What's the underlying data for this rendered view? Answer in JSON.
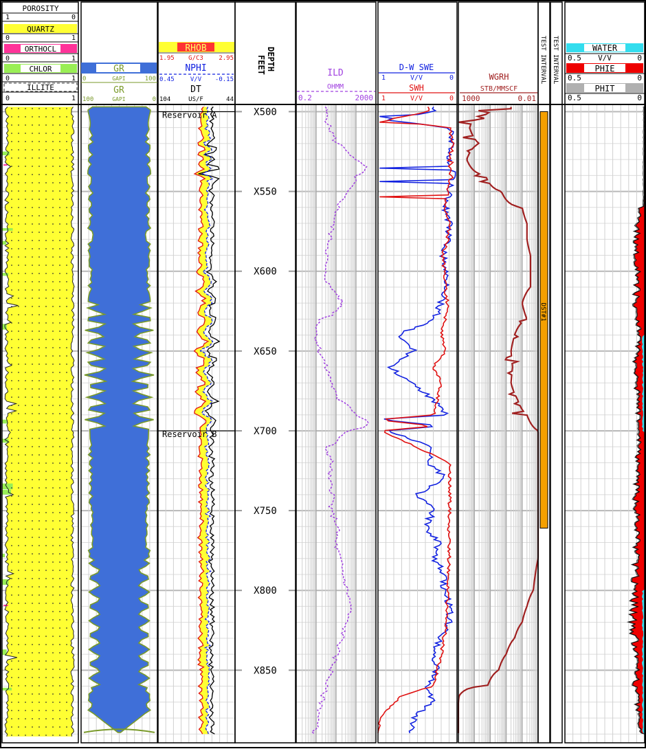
{
  "tracks": {
    "lithology": {
      "porosity_label": "POROSITY",
      "porosity_left": "1",
      "porosity_right": "0",
      "rows": [
        {
          "label": "QUARTZ",
          "left": "0",
          "right": "1",
          "color": "#ffff33"
        },
        {
          "label": "ORTHOCL",
          "left": "0",
          "right": "1",
          "color": "#ff3399"
        },
        {
          "label": "CHLOR",
          "left": "0",
          "right": "1",
          "color": "#99ee55"
        },
        {
          "label": "ILLITE",
          "left": "0",
          "right": "1",
          "color": "#ffffff"
        }
      ]
    },
    "gr": {
      "upper_label": "GR",
      "upper_left": "0",
      "upper_unit": "GAPI",
      "upper_right": "100",
      "lower_label": "GR",
      "lower_left": "100",
      "lower_unit": "GAPI",
      "lower_right": "0",
      "color": "#3f6fd8",
      "text_color": "#7a9a2a"
    },
    "porosity": {
      "rhob_label": "RHOB",
      "rhob_left": "1.95",
      "rhob_unit": "G/C3",
      "rhob_right": "2.95",
      "nphi_label": "NPHI",
      "nphi_left": "0.45",
      "nphi_unit": "V/V",
      "nphi_right": "-0.15",
      "dt_label": "DT",
      "dt_left": "104",
      "dt_unit": "US/F",
      "dt_right": "44",
      "zones": [
        {
          "label": "Reservoir A",
          "depth": 500
        },
        {
          "label": "Reservoir B",
          "depth": 700
        }
      ]
    },
    "depth": {
      "title": "DEPTH",
      "unit": "FEET",
      "ticks": [
        "X500",
        "X550",
        "X600",
        "X650",
        "X700",
        "X750",
        "X800",
        "X850"
      ]
    },
    "resistivity": {
      "label": "ILD",
      "unit": "OHMM",
      "left": "0.2",
      "right": "2000",
      "color": "#a040e0"
    },
    "saturation": {
      "swe_label": "D-W SWE",
      "swe_left": "1",
      "swe_unit": "V/V",
      "swe_right": "0",
      "swe_color": "#1020e0",
      "swh_label": "SWH",
      "swh_left": "1",
      "swh_unit": "V/V",
      "swh_right": "0",
      "swh_color": "#e01010"
    },
    "wgr": {
      "label": "WGRH",
      "unit": "STB/MMSCF",
      "left": "1000",
      "right": "0.01",
      "color": "#a02020"
    },
    "test": {
      "label1": "TEST INTERVAL",
      "label2": "TEST INTERVAL",
      "dst_label": "DST#1",
      "top": 500,
      "base": 761,
      "color": "#f5a000"
    },
    "fluids": {
      "water_label": "WATER",
      "water_left": "0.5",
      "water_unit": "V/V",
      "water_right": "0",
      "water_color": "#33ddee",
      "phie_label": "PHIE",
      "phie_left": "0.5",
      "phie_right": "0",
      "phie_color": "#ee0000",
      "phit_label": "PHIT",
      "phit_left": "0.5",
      "phit_right": "0",
      "phit_color": "#b0b0b0"
    }
  },
  "chart_data": {
    "type": "line",
    "depth_range": [
      497,
      892
    ],
    "depth_unit": "FEET",
    "series": [
      {
        "name": "ILD",
        "unit": "OHMM",
        "scale": "log",
        "range": [
          0.2,
          2000
        ],
        "depth": [
          500,
          510,
          520,
          530,
          535,
          540,
          550,
          560,
          570,
          580,
          590,
          600,
          610,
          620,
          630,
          640,
          650,
          660,
          670,
          680,
          690,
          695,
          700,
          710,
          720,
          730,
          740,
          750,
          760,
          770,
          780,
          790,
          800,
          810,
          820,
          830,
          840,
          850,
          860,
          870,
          880,
          890
        ],
        "values": [
          6,
          9,
          20,
          150,
          600,
          220,
          60,
          25,
          14,
          10,
          7,
          5,
          9,
          40,
          3,
          2,
          3,
          6,
          12,
          20,
          200,
          900,
          50,
          6,
          12,
          8,
          15,
          10,
          25,
          18,
          30,
          45,
          70,
          110,
          60,
          40,
          20,
          12,
          6,
          4,
          2.5,
          1.6
        ]
      },
      {
        "name": "D-W SWE",
        "unit": "V/V",
        "range": [
          1,
          0
        ],
        "depth": [
          500,
          505,
          510,
          520,
          530,
          540,
          550,
          560,
          570,
          580,
          590,
          600,
          610,
          620,
          630,
          640,
          650,
          660,
          670,
          680,
          690,
          693,
          697,
          700,
          710,
          720,
          730,
          740,
          750,
          760,
          770,
          780,
          790,
          800,
          810,
          820,
          830,
          840,
          850,
          860,
          870,
          880,
          890
        ],
        "values": [
          0.3,
          0.95,
          0.1,
          0.05,
          0.1,
          0.05,
          0.1,
          0.15,
          0.1,
          0.12,
          0.18,
          0.15,
          0.12,
          0.2,
          0.28,
          0.75,
          0.55,
          0.85,
          0.6,
          0.3,
          0.15,
          1.0,
          0.2,
          0.9,
          0.3,
          0.35,
          0.15,
          0.5,
          0.3,
          0.4,
          0.22,
          0.3,
          0.15,
          0.18,
          0.08,
          0.1,
          0.2,
          0.3,
          0.25,
          0.38,
          0.32,
          0.55,
          0.6
        ]
      },
      {
        "name": "SWH",
        "unit": "V/V",
        "range": [
          1,
          0
        ],
        "depth": [
          500,
          505,
          510,
          520,
          530,
          540,
          550,
          560,
          570,
          580,
          590,
          600,
          610,
          620,
          630,
          640,
          650,
          660,
          670,
          680,
          690,
          693,
          697,
          700,
          720,
          740,
          760,
          780,
          800,
          820,
          840,
          860,
          866,
          880,
          890
        ],
        "values": [
          0.35,
          0.9,
          0.1,
          0.05,
          0.1,
          0.08,
          0.12,
          0.15,
          0.1,
          0.12,
          0.18,
          0.16,
          0.15,
          0.12,
          0.15,
          0.2,
          0.15,
          0.3,
          0.2,
          0.25,
          0.28,
          1.0,
          0.3,
          0.95,
          0.1,
          0.09,
          0.1,
          0.1,
          0.12,
          0.13,
          0.2,
          0.3,
          0.7,
          0.99,
          0.99
        ]
      },
      {
        "name": "WGRH",
        "unit": "STB/MMSCF",
        "scale": "log",
        "range": [
          1000,
          0.01
        ],
        "depth": [
          500,
          510,
          520,
          530,
          540,
          550,
          560,
          570,
          580,
          590,
          600,
          610,
          620,
          630,
          640,
          650,
          660,
          670,
          680,
          690,
          700,
          720,
          740,
          760,
          780,
          800,
          810,
          820,
          830,
          840,
          850,
          860,
          866,
          870,
          890
        ],
        "values": [
          0.5,
          200,
          50,
          300,
          20,
          2,
          0.1,
          0.05,
          0.05,
          0.03,
          0.03,
          0.03,
          0.1,
          0.05,
          0.3,
          0.5,
          0.4,
          0.5,
          0.2,
          0.05,
          0.01,
          0.01,
          0.01,
          0.01,
          0.01,
          0.02,
          0.05,
          0.1,
          0.3,
          1,
          3,
          15,
          900,
          1000,
          1000
        ]
      },
      {
        "name": "PHIE",
        "unit": "V/V",
        "range": [
          0.5,
          0
        ],
        "depth": [
          500,
          550,
          580,
          600,
          620,
          640,
          660,
          680,
          700,
          720,
          740,
          760,
          780,
          800,
          820,
          840,
          860,
          880,
          890
        ],
        "values": [
          0.005,
          0.01,
          0.05,
          0.04,
          0.05,
          0.03,
          0.05,
          0.04,
          0.03,
          0.04,
          0.05,
          0.04,
          0.05,
          0.06,
          0.07,
          0.05,
          0.05,
          0.03,
          0.02
        ]
      }
    ],
    "shading": [
      "QUARTZ",
      "GR",
      "PHIE",
      "WATER",
      "PHIT"
    ]
  }
}
